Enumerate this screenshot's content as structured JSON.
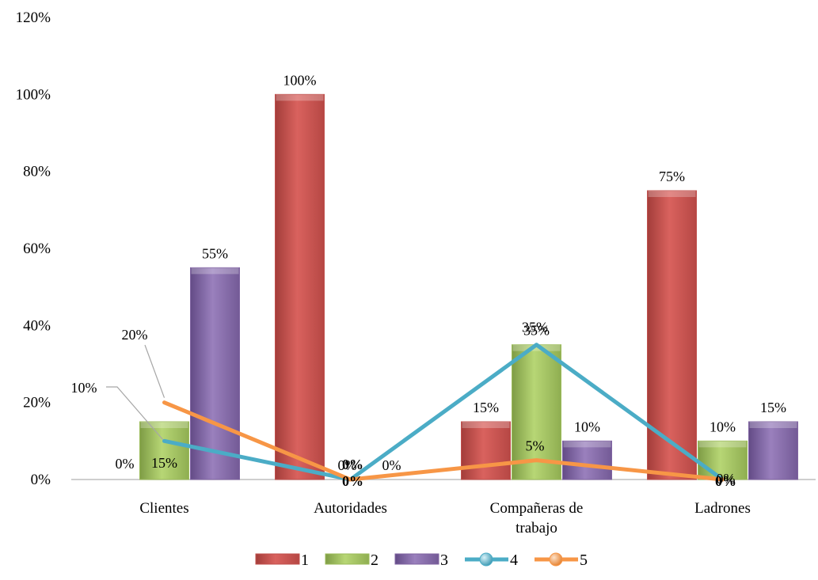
{
  "chart_data": {
    "type": "bar",
    "title": "",
    "xlabel": "",
    "ylabel": "",
    "categories": [
      "Clientes",
      "Autoridades",
      "Compañeras de trabajo",
      "Ladrones"
    ],
    "category_lines": [
      [
        "Clientes"
      ],
      [
        "Autoridades"
      ],
      [
        "Compañeras de",
        "trabajo"
      ],
      [
        "Ladrones"
      ]
    ],
    "ylim": [
      0,
      120
    ],
    "yticks": [
      0,
      20,
      40,
      60,
      80,
      100,
      120
    ],
    "ytick_labels": [
      "0%",
      "20%",
      "40%",
      "60%",
      "80%",
      "100%",
      "120%"
    ],
    "grid": false,
    "legend_position": "bottom",
    "series": [
      {
        "name": "1",
        "kind": "bar",
        "color": "#c0504d",
        "values": [
          0,
          100,
          15,
          75
        ],
        "labels": [
          "0%",
          "100%",
          "15%",
          "75%"
        ]
      },
      {
        "name": "2",
        "kind": "bar",
        "color": "#9bbb59",
        "values": [
          15,
          0,
          35,
          10
        ],
        "labels": [
          "15%",
          "0%",
          "35%",
          "10%"
        ]
      },
      {
        "name": "3",
        "kind": "bar",
        "color": "#8064a2",
        "values": [
          55,
          0,
          10,
          15
        ],
        "labels": [
          "55%",
          "0%",
          "10%",
          "15%"
        ]
      },
      {
        "name": "4",
        "kind": "line",
        "color": "#4bacc6",
        "values": [
          10,
          0,
          35,
          0
        ],
        "labels": [
          "10%",
          "0%",
          "35%",
          "0%"
        ]
      },
      {
        "name": "5",
        "kind": "line",
        "color": "#f79646",
        "values": [
          20,
          0,
          5,
          0
        ],
        "labels": [
          "20%",
          "0%",
          "5%",
          "0%"
        ]
      }
    ]
  }
}
